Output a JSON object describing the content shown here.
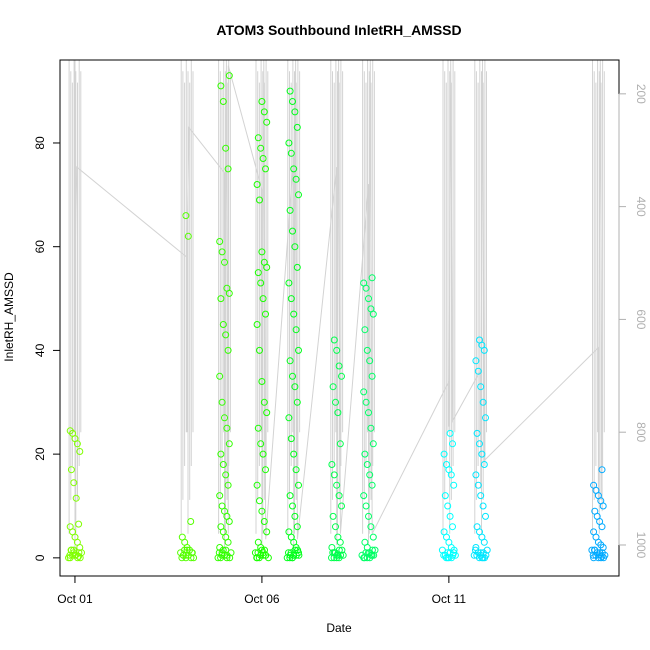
{
  "chart_data": {
    "type": "scatter",
    "title": "ATOM3 Southbound InletRH_AMSSD",
    "xlabel": "Date",
    "ylabel": "InletRH_AMSSD",
    "x_ticks": [
      "Oct 01",
      "Oct 06",
      "Oct 11"
    ],
    "y_ticks": [
      0,
      20,
      40,
      60,
      80
    ],
    "y_right_ticks": [
      200,
      400,
      600,
      800,
      1000
    ],
    "ylim": [
      -3.5,
      96
    ],
    "y_right_lim": [
      1055,
      140
    ],
    "y_right_reversed": true,
    "xlim_days": [
      -0.4,
      14.55
    ],
    "grid": false,
    "legend": "none",
    "point_colors": [
      "#80ff00",
      "#4dff00",
      "#1aff00",
      "#00ff33",
      "#00ff66",
      "#00ff99",
      "#00ffcc",
      "#00ffff",
      "#00ccff",
      "#0099ff"
    ],
    "pressure_line_color": "#d3d3d3",
    "series": [
      {
        "day": 0.0,
        "color": "#80ff00",
        "values": [
          0,
          0.3,
          0.6,
          1,
          1.5,
          2,
          3,
          4,
          5,
          6,
          6.5,
          11.5,
          14.5,
          17,
          20.5,
          22,
          23,
          24,
          24.5
        ]
      },
      {
        "day": 3.0,
        "color": "#55ff00",
        "values": [
          0,
          0.5,
          1,
          1.5,
          2,
          3,
          4,
          7,
          62,
          66
        ]
      },
      {
        "day": 4.0,
        "color": "#33ff00",
        "values": [
          0,
          0.5,
          1,
          2,
          3,
          4,
          5,
          6,
          7,
          8,
          9,
          10,
          12,
          14,
          16,
          18,
          20,
          22,
          25,
          27,
          30,
          35,
          40,
          43,
          45,
          50,
          51,
          52,
          57,
          59,
          61,
          75,
          79,
          88,
          91,
          93
        ]
      },
      {
        "day": 5.0,
        "color": "#1aff00",
        "values": [
          0,
          0.5,
          1,
          2,
          3,
          5,
          7,
          9,
          11,
          14,
          17,
          20,
          22,
          25,
          28,
          30,
          34,
          40,
          45,
          47,
          50,
          53,
          55,
          56,
          57,
          59,
          69,
          72,
          75,
          77,
          79,
          81,
          84,
          86,
          88
        ]
      },
      {
        "day": 5.85,
        "color": "#00ff1a",
        "values": [
          0,
          0.5,
          1,
          2,
          3,
          4,
          5,
          6,
          8,
          10,
          12,
          14,
          17,
          20,
          23,
          27,
          30,
          33,
          35,
          38,
          40,
          44,
          47,
          50,
          53,
          56,
          60,
          63,
          67,
          70,
          73,
          75,
          78,
          80,
          83,
          86,
          88,
          90
        ]
      },
      {
        "day": 7.0,
        "color": "#00ff4d",
        "values": [
          0,
          0.5,
          1,
          2,
          3,
          4,
          6,
          8,
          10,
          12,
          14,
          16,
          18,
          22,
          28,
          30,
          33,
          35,
          37,
          40,
          42
        ]
      },
      {
        "day": 7.85,
        "color": "#00ff66",
        "values": [
          0,
          0.5,
          1,
          2,
          3,
          4,
          6,
          8,
          10,
          12,
          14,
          16,
          18,
          20,
          22,
          25,
          28,
          30,
          32,
          35,
          38,
          40,
          44,
          47,
          48,
          50,
          52,
          53,
          54
        ]
      },
      {
        "day": 10.0,
        "color": "#00ffff",
        "values": [
          0,
          0.5,
          1,
          2,
          3,
          4,
          5,
          6,
          8,
          10,
          12,
          14,
          16,
          17,
          18,
          20,
          22,
          24
        ]
      },
      {
        "day": 10.85,
        "color": "#00e6ff",
        "values": [
          0,
          0.5,
          1,
          2,
          3,
          4,
          5,
          6,
          8,
          10,
          12,
          14,
          16,
          18,
          20,
          22,
          24,
          27,
          30,
          33,
          36,
          38,
          40,
          41,
          42
        ]
      },
      {
        "day": 14.0,
        "color": "#00aaff",
        "values": [
          0,
          0.3,
          0.6,
          1,
          1.5,
          2,
          2.5,
          3,
          4,
          5,
          6,
          7,
          8,
          9,
          10,
          11,
          12,
          13,
          14,
          17
        ]
      }
    ],
    "pressure_line": [
      {
        "day": 0.0,
        "p": 140
      },
      {
        "day": 0.0,
        "p": 1010
      },
      {
        "day": 0.0,
        "p": 505
      },
      {
        "day": 0.05,
        "p": 330
      },
      {
        "day": 3.0,
        "p": 490
      },
      {
        "day": 3.0,
        "p": 800
      },
      {
        "day": 3.0,
        "p": 460
      },
      {
        "day": 3.05,
        "p": 260
      },
      {
        "day": 4.0,
        "p": 340
      },
      {
        "day": 4.0,
        "p": 1010
      },
      {
        "day": 4.05,
        "p": 140
      },
      {
        "day": 4.1,
        "p": 980
      },
      {
        "day": 4.1,
        "p": 150
      },
      {
        "day": 5.0,
        "p": 370
      },
      {
        "day": 5.0,
        "p": 1000
      },
      {
        "day": 5.05,
        "p": 140
      },
      {
        "day": 5.1,
        "p": 990
      },
      {
        "day": 5.85,
        "p": 310
      },
      {
        "day": 5.85,
        "p": 1000
      },
      {
        "day": 5.9,
        "p": 140
      },
      {
        "day": 5.95,
        "p": 990
      },
      {
        "day": 7.0,
        "p": 330
      },
      {
        "day": 7.0,
        "p": 1000
      },
      {
        "day": 7.05,
        "p": 140
      },
      {
        "day": 7.1,
        "p": 980
      },
      {
        "day": 7.85,
        "p": 360
      },
      {
        "day": 7.85,
        "p": 1000
      },
      {
        "day": 7.9,
        "p": 140
      },
      {
        "day": 7.95,
        "p": 980
      },
      {
        "day": 10.0,
        "p": 710
      },
      {
        "day": 10.0,
        "p": 790
      },
      {
        "day": 10.05,
        "p": 140
      },
      {
        "day": 10.1,
        "p": 780
      },
      {
        "day": 10.85,
        "p": 690
      },
      {
        "day": 10.85,
        "p": 900
      },
      {
        "day": 10.9,
        "p": 140
      },
      {
        "day": 10.95,
        "p": 850
      },
      {
        "day": 14.0,
        "p": 650
      },
      {
        "day": 14.0,
        "p": 920
      },
      {
        "day": 14.05,
        "p": 140
      },
      {
        "day": 14.1,
        "p": 940
      }
    ]
  }
}
